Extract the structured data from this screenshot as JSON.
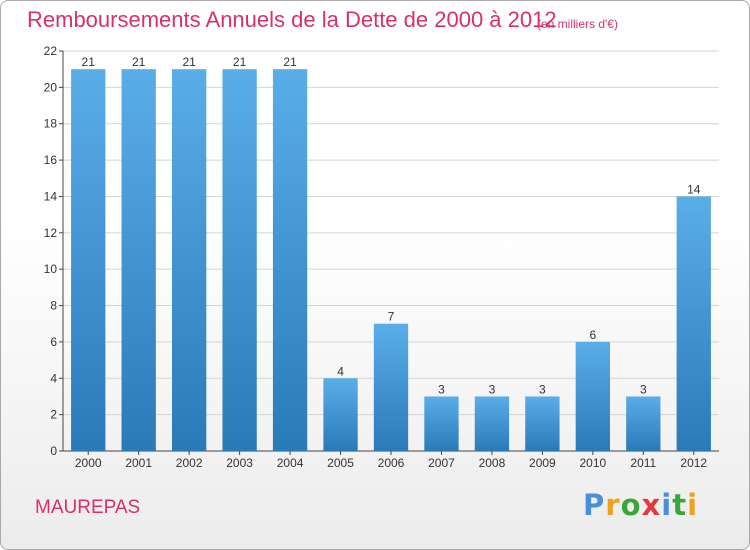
{
  "title": "Remboursements Annuels de la Dette de 2000 à 2012",
  "unit_note": "(en milliers d'€)",
  "commune": "MAUREPAS",
  "logo": {
    "text": "Proxiti",
    "letters": [
      "P",
      "r",
      "o",
      "x",
      "i",
      "t",
      "i"
    ],
    "colors": [
      "#4a90d9",
      "#f0a020",
      "#3aa63a",
      "#e03a3a",
      "#4a90d9",
      "#3aa63a",
      "#f0a020"
    ]
  },
  "colors": {
    "bar_top": "#5aaee8",
    "bar_bottom": "#2a7ab8",
    "title": "#d8306a",
    "grid": "#d4d4d4",
    "axis": "#444444"
  },
  "chart_data": {
    "type": "bar",
    "categories": [
      "2000",
      "2001",
      "2002",
      "2003",
      "2004",
      "2005",
      "2006",
      "2007",
      "2008",
      "2009",
      "2010",
      "2011",
      "2012"
    ],
    "values": [
      21,
      21,
      21,
      21,
      21,
      4,
      7,
      3,
      3,
      3,
      6,
      3,
      14
    ],
    "data_labels": [
      "21",
      "21",
      "21",
      "21",
      "21",
      "4",
      "7",
      "3",
      "3",
      "3",
      "6",
      "3",
      "14"
    ],
    "yticks": [
      "0",
      "2",
      "4",
      "6",
      "8",
      "10",
      "12",
      "14",
      "16",
      "18",
      "20",
      "22"
    ],
    "ylim": [
      0,
      22
    ],
    "grid": true,
    "legend": "none"
  }
}
